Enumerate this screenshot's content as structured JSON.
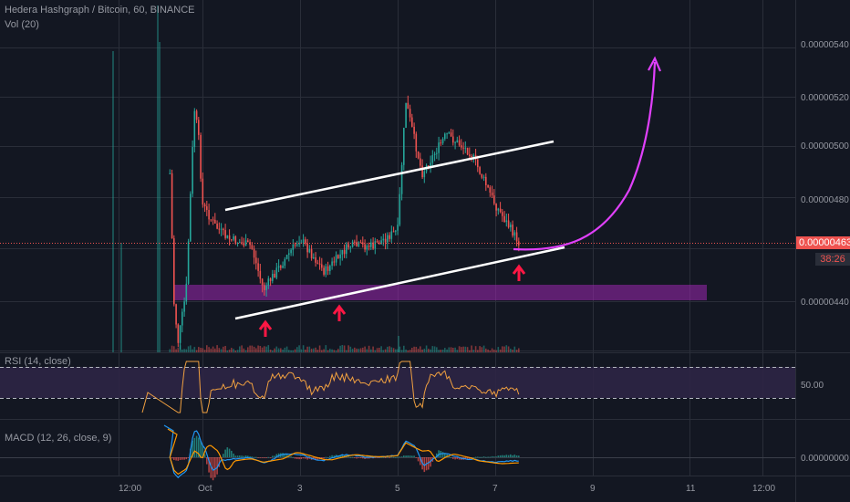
{
  "header": {
    "title": "Hedera Hashgraph / Bitcoin, 60, BINANCE",
    "vol_label": "Vol (20)",
    "rsi_label": "RSI (14, close)",
    "macd_label": "MACD (12, 26, close, 9)"
  },
  "colors": {
    "background": "#131722",
    "grid": "#2a2e39",
    "up": "#26a69a",
    "down": "#ef5350",
    "trendline": "#ffffff",
    "support_zone": "#9c27b0",
    "projection": "#e040fb",
    "arrows": "#ff1744",
    "rsi_line": "#f0a040",
    "rsi_band": "#2d2545",
    "macd_line": "#2196f3",
    "signal_line": "#ff9800",
    "price_marker": "#ef5350"
  },
  "price_scale": {
    "ticks": [
      "0.00000540",
      "0.00000520",
      "0.00000500",
      "0.00000480",
      "0.00000440"
    ],
    "current_price": "0.00000463",
    "countdown": "38:26"
  },
  "rsi_scale": {
    "tick": "50.00"
  },
  "macd_scale": {
    "tick": "0.00000000"
  },
  "time_axis": {
    "labels": [
      "12:00",
      "Oct",
      "3",
      "5",
      "7",
      "9",
      "11",
      "12:00"
    ]
  },
  "chart_data": {
    "type": "candlestick",
    "title": "Hedera Hashgraph / Bitcoin, 60, BINANCE",
    "ylim": [
      4.2e-06,
      5.5e-06
    ],
    "current_price": 4.63e-06,
    "price_path": [
      {
        "x": "Sep 30 08:00",
        "y": 4.9e-06
      },
      {
        "x": "Sep 30 10:00",
        "y": 4.4e-06
      },
      {
        "x": "Sep 30 12:00",
        "y": 4.25e-06
      },
      {
        "x": "Sep 30 16:00",
        "y": 4.45e-06
      },
      {
        "x": "Sep 30 20:00",
        "y": 5.15e-06
      },
      {
        "x": "Sep 30 22:00",
        "y": 5.05e-06
      },
      {
        "x": "Oct 1 00:00",
        "y": 4.78e-06
      },
      {
        "x": "Oct 1 06:00",
        "y": 4.7e-06
      },
      {
        "x": "Oct 1 12:00",
        "y": 4.65e-06
      },
      {
        "x": "Oct 2 00:00",
        "y": 4.62e-06
      },
      {
        "x": "Oct 2 06:00",
        "y": 4.45e-06
      },
      {
        "x": "Oct 2 12:00",
        "y": 4.52e-06
      },
      {
        "x": "Oct 3 00:00",
        "y": 4.65e-06
      },
      {
        "x": "Oct 3 12:00",
        "y": 4.52e-06
      },
      {
        "x": "Oct 4 00:00",
        "y": 4.62e-06
      },
      {
        "x": "Oct 4 12:00",
        "y": 4.62e-06
      },
      {
        "x": "Oct 5 00:00",
        "y": 4.68e-06
      },
      {
        "x": "Oct 5 04:00",
        "y": 5.18e-06
      },
      {
        "x": "Oct 5 12:00",
        "y": 4.9e-06
      },
      {
        "x": "Oct 6 00:00",
        "y": 5.05e-06
      },
      {
        "x": "Oct 6 12:00",
        "y": 4.98e-06
      },
      {
        "x": "Oct 7 00:00",
        "y": 4.78e-06
      },
      {
        "x": "Oct 7 12:00",
        "y": 4.63e-06
      }
    ],
    "annotations": {
      "channel_upper": [
        [
          "Oct 1 12:00",
          4.76e-06
        ],
        [
          "Oct 8 12:00",
          5.03e-06
        ]
      ],
      "channel_lower": [
        [
          "Oct 2 00:00",
          4.36e-06
        ],
        [
          "Oct 8 12:00",
          4.62e-06
        ]
      ],
      "support_zone": {
        "from": "Oct 1 00:00",
        "to": "Oct 11 00:00",
        "y": [
          4.41e-06,
          4.45e-06
        ]
      },
      "arrows": [
        "Oct 2 12:00",
        "Oct 4 00:00",
        "Oct 7 12:00"
      ],
      "projection": {
        "from": [
          "Oct 7 12:00",
          4.63e-06
        ],
        "to": [
          "Oct 10 12:00",
          5.38e-06
        ]
      }
    },
    "rsi": {
      "level_marked": 50.0
    },
    "macd": {
      "zero_level": 0.0
    },
    "legend": "top-left",
    "grid": true
  }
}
